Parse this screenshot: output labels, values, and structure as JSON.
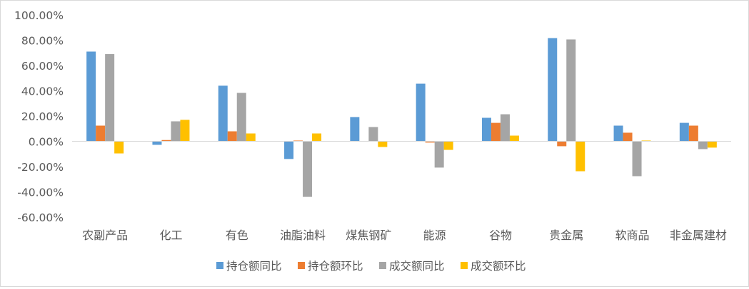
{
  "chart_data": {
    "type": "bar",
    "title": "",
    "xlabel": "",
    "ylabel": "",
    "ylim": [
      -60,
      100
    ],
    "yticks": [
      100,
      80,
      60,
      40,
      20,
      0,
      -20,
      -40,
      -60
    ],
    "ytick_labels": [
      "100.00%",
      "80.00%",
      "60.00%",
      "40.00%",
      "20.00%",
      "0.00%",
      "-20.00%",
      "-40.00%",
      "-60.00%"
    ],
    "grid": false,
    "legend_position": "bottom",
    "categories": [
      "农副产品",
      "化工",
      "有色",
      "油脂油料",
      "煤焦钢矿",
      "能源",
      "谷物",
      "贵金属",
      "软商品",
      "非金属建材"
    ],
    "series": [
      {
        "name": "持仓额同比",
        "color": "#5b9bd5",
        "values": [
          71.0,
          -2.8,
          44.0,
          -14.0,
          19.2,
          45.6,
          18.6,
          81.7,
          12.4,
          14.6
        ]
      },
      {
        "name": "持仓额环比",
        "color": "#ed7d31",
        "values": [
          12.4,
          1.0,
          7.9,
          0.6,
          0.0,
          -1.0,
          14.6,
          -3.9,
          6.8,
          12.4
        ]
      },
      {
        "name": "成交额同比",
        "color": "#a5a5a5",
        "values": [
          69.0,
          15.8,
          38.3,
          -44.0,
          11.3,
          -20.8,
          21.4,
          80.6,
          -27.6,
          -6.2
        ]
      },
      {
        "name": "成交额环比",
        "color": "#ffc000",
        "values": [
          -9.6,
          17.0,
          6.2,
          6.2,
          -4.5,
          -6.8,
          4.5,
          -23.7,
          0.6,
          -5.0
        ]
      }
    ]
  }
}
